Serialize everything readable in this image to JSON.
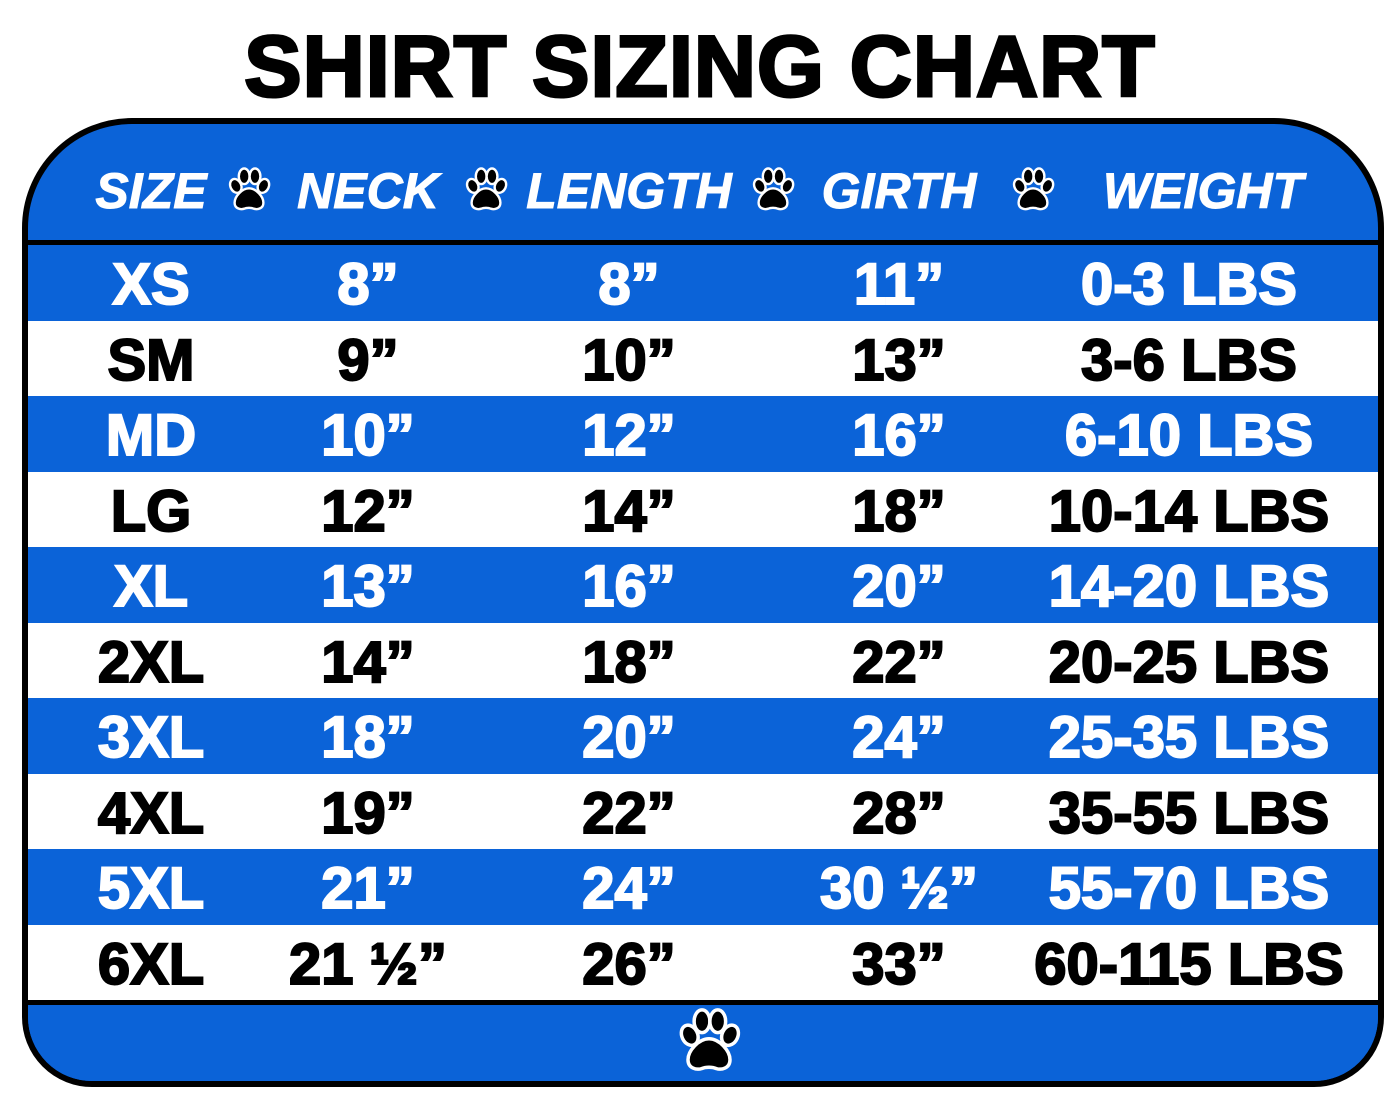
{
  "title": "SHIRT SIZING CHART",
  "headers": [
    "SIZE",
    "NECK",
    "LENGTH",
    "GIRTH",
    "WEIGHT"
  ],
  "icons": {
    "separator": "paw-print-icon",
    "footer": "paw-print-icon"
  },
  "colors": {
    "blue": "#0b63d8",
    "black": "#000000",
    "white": "#ffffff"
  },
  "rows": [
    [
      "XS",
      "8”",
      "8”",
      "11”",
      "0-3 LBS"
    ],
    [
      "SM",
      "9”",
      "10”",
      "13”",
      "3-6 LBS"
    ],
    [
      "MD",
      "10”",
      "12”",
      "16”",
      "6-10 LBS"
    ],
    [
      "LG",
      "12”",
      "14”",
      "18”",
      "10-14 LBS"
    ],
    [
      "XL",
      "13”",
      "16”",
      "20”",
      "14-20 LBS"
    ],
    [
      "2XL",
      "14”",
      "18”",
      "22”",
      "20-25 LBS"
    ],
    [
      "3XL",
      "18”",
      "20”",
      "24”",
      "25-35 LBS"
    ],
    [
      "4XL",
      "19”",
      "22”",
      "28”",
      "35-55 LBS"
    ],
    [
      "5XL",
      "21”",
      "24”",
      "30 ½”",
      "55-70 LBS"
    ],
    [
      "6XL",
      "21 ½”",
      "26”",
      "33”",
      "60-115 LBS"
    ]
  ]
}
